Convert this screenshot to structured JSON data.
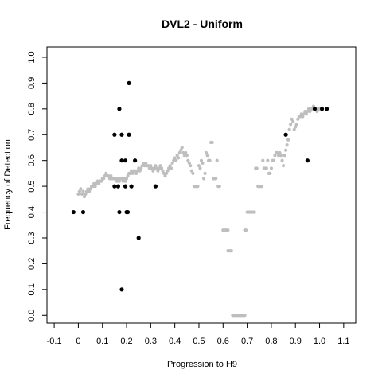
{
  "chart_data": {
    "type": "scatter",
    "title": "DVL2 - Uniform",
    "xlabel": "Progression to H9",
    "ylabel": "Frequency of Detection",
    "xlim": [
      -0.13,
      1.15
    ],
    "ylim": [
      -0.03,
      1.04
    ],
    "x_ticks": [
      "-0.1",
      "0",
      "0.1",
      "0.2",
      "0.3",
      "0.4",
      "0.5",
      "0.6",
      "0.7",
      "0.8",
      "0.9",
      "1.0",
      "1.1"
    ],
    "x_tick_values": [
      -0.1,
      0,
      0.1,
      0.2,
      0.3,
      0.4,
      0.5,
      0.6,
      0.7,
      0.8,
      0.9,
      1.0,
      1.1
    ],
    "y_ticks": [
      "0.0",
      "0.1",
      "0.2",
      "0.3",
      "0.4",
      "0.5",
      "0.6",
      "0.7",
      "0.8",
      "0.9",
      "1.0"
    ],
    "y_tick_values": [
      0,
      0.1,
      0.2,
      0.3,
      0.4,
      0.5,
      0.6,
      0.7,
      0.8,
      0.9,
      1.0
    ],
    "grid": false,
    "legend": "none",
    "series": [
      {
        "color": "#bebebe",
        "points": [
          [
            0.0,
            0.47
          ],
          [
            0.005,
            0.48
          ],
          [
            0.01,
            0.49
          ],
          [
            0.015,
            0.47
          ],
          [
            0.02,
            0.48
          ],
          [
            0.025,
            0.46
          ],
          [
            0.03,
            0.47
          ],
          [
            0.035,
            0.48
          ],
          [
            0.04,
            0.49
          ],
          [
            0.045,
            0.48
          ],
          [
            0.05,
            0.49
          ],
          [
            0.055,
            0.5
          ],
          [
            0.06,
            0.5
          ],
          [
            0.065,
            0.51
          ],
          [
            0.07,
            0.5
          ],
          [
            0.075,
            0.51
          ],
          [
            0.08,
            0.52
          ],
          [
            0.085,
            0.51
          ],
          [
            0.09,
            0.52
          ],
          [
            0.095,
            0.52
          ],
          [
            0.1,
            0.53
          ],
          [
            0.105,
            0.53
          ],
          [
            0.11,
            0.54
          ],
          [
            0.115,
            0.55
          ],
          [
            0.12,
            0.54
          ],
          [
            0.125,
            0.54
          ],
          [
            0.13,
            0.53
          ],
          [
            0.135,
            0.54
          ],
          [
            0.14,
            0.53
          ],
          [
            0.145,
            0.53
          ],
          [
            0.15,
            0.53
          ],
          [
            0.155,
            0.53
          ],
          [
            0.16,
            0.52
          ],
          [
            0.165,
            0.53
          ],
          [
            0.17,
            0.52
          ],
          [
            0.175,
            0.53
          ],
          [
            0.18,
            0.53
          ],
          [
            0.185,
            0.52
          ],
          [
            0.19,
            0.53
          ],
          [
            0.195,
            0.52
          ],
          [
            0.2,
            0.53
          ],
          [
            0.205,
            0.54
          ],
          [
            0.21,
            0.55
          ],
          [
            0.215,
            0.55
          ],
          [
            0.22,
            0.56
          ],
          [
            0.225,
            0.55
          ],
          [
            0.23,
            0.56
          ],
          [
            0.235,
            0.56
          ],
          [
            0.24,
            0.55
          ],
          [
            0.245,
            0.56
          ],
          [
            0.25,
            0.57
          ],
          [
            0.255,
            0.56
          ],
          [
            0.26,
            0.57
          ],
          [
            0.265,
            0.58
          ],
          [
            0.27,
            0.59
          ],
          [
            0.275,
            0.58
          ],
          [
            0.28,
            0.59
          ],
          [
            0.285,
            0.58
          ],
          [
            0.29,
            0.58
          ],
          [
            0.295,
            0.57
          ],
          [
            0.3,
            0.58
          ],
          [
            0.305,
            0.57
          ],
          [
            0.31,
            0.56
          ],
          [
            0.315,
            0.57
          ],
          [
            0.32,
            0.58
          ],
          [
            0.325,
            0.57
          ],
          [
            0.33,
            0.56
          ],
          [
            0.335,
            0.57
          ],
          [
            0.34,
            0.58
          ],
          [
            0.345,
            0.57
          ],
          [
            0.35,
            0.56
          ],
          [
            0.355,
            0.55
          ],
          [
            0.36,
            0.54
          ],
          [
            0.365,
            0.55
          ],
          [
            0.37,
            0.56
          ],
          [
            0.375,
            0.57
          ],
          [
            0.38,
            0.58
          ],
          [
            0.385,
            0.57
          ],
          [
            0.39,
            0.59
          ],
          [
            0.395,
            0.6
          ],
          [
            0.4,
            0.61
          ],
          [
            0.405,
            0.6
          ],
          [
            0.41,
            0.62
          ],
          [
            0.415,
            0.61
          ],
          [
            0.42,
            0.63
          ],
          [
            0.425,
            0.64
          ],
          [
            0.43,
            0.65
          ],
          [
            0.435,
            0.63
          ],
          [
            0.44,
            0.62
          ],
          [
            0.445,
            0.63
          ],
          [
            0.45,
            0.62
          ],
          [
            0.455,
            0.6
          ],
          [
            0.46,
            0.59
          ],
          [
            0.465,
            0.58
          ],
          [
            0.47,
            0.56
          ],
          [
            0.475,
            0.55
          ],
          [
            0.48,
            0.5
          ],
          [
            0.485,
            0.5
          ],
          [
            0.49,
            0.5
          ],
          [
            0.495,
            0.5
          ],
          [
            0.5,
            0.58
          ],
          [
            0.505,
            0.57
          ],
          [
            0.51,
            0.6
          ],
          [
            0.515,
            0.59
          ],
          [
            0.52,
            0.53
          ],
          [
            0.525,
            0.55
          ],
          [
            0.53,
            0.63
          ],
          [
            0.535,
            0.62
          ],
          [
            0.54,
            0.6
          ],
          [
            0.545,
            0.6
          ],
          [
            0.55,
            0.67
          ],
          [
            0.555,
            0.67
          ],
          [
            0.56,
            0.53
          ],
          [
            0.565,
            0.53
          ],
          [
            0.57,
            0.53
          ],
          [
            0.575,
            0.6
          ],
          [
            0.58,
            0.5
          ],
          [
            0.585,
            0.5
          ],
          [
            0.6,
            0.33
          ],
          [
            0.605,
            0.33
          ],
          [
            0.61,
            0.33
          ],
          [
            0.615,
            0.33
          ],
          [
            0.62,
            0.33
          ],
          [
            0.62,
            0.25
          ],
          [
            0.625,
            0.25
          ],
          [
            0.63,
            0.25
          ],
          [
            0.635,
            0.25
          ],
          [
            0.64,
            0.0
          ],
          [
            0.645,
            0.0
          ],
          [
            0.65,
            0.0
          ],
          [
            0.655,
            0.0
          ],
          [
            0.66,
            0.0
          ],
          [
            0.665,
            0.0
          ],
          [
            0.67,
            0.0
          ],
          [
            0.675,
            0.0
          ],
          [
            0.68,
            0.0
          ],
          [
            0.685,
            0.0
          ],
          [
            0.69,
            0.0
          ],
          [
            0.69,
            0.33
          ],
          [
            0.695,
            0.33
          ],
          [
            0.7,
            0.4
          ],
          [
            0.705,
            0.4
          ],
          [
            0.71,
            0.4
          ],
          [
            0.715,
            0.4
          ],
          [
            0.72,
            0.4
          ],
          [
            0.725,
            0.4
          ],
          [
            0.73,
            0.4
          ],
          [
            0.735,
            0.57
          ],
          [
            0.74,
            0.57
          ],
          [
            0.745,
            0.5
          ],
          [
            0.75,
            0.5
          ],
          [
            0.755,
            0.5
          ],
          [
            0.76,
            0.5
          ],
          [
            0.765,
            0.6
          ],
          [
            0.77,
            0.57
          ],
          [
            0.775,
            0.57
          ],
          [
            0.78,
            0.57
          ],
          [
            0.785,
            0.6
          ],
          [
            0.79,
            0.55
          ],
          [
            0.795,
            0.55
          ],
          [
            0.8,
            0.57
          ],
          [
            0.805,
            0.6
          ],
          [
            0.81,
            0.6
          ],
          [
            0.815,
            0.62
          ],
          [
            0.82,
            0.63
          ],
          [
            0.825,
            0.63
          ],
          [
            0.83,
            0.62
          ],
          [
            0.835,
            0.63
          ],
          [
            0.84,
            0.62
          ],
          [
            0.845,
            0.6
          ],
          [
            0.85,
            0.58
          ],
          [
            0.855,
            0.62
          ],
          [
            0.86,
            0.64
          ],
          [
            0.865,
            0.66
          ],
          [
            0.87,
            0.68
          ],
          [
            0.875,
            0.72
          ],
          [
            0.88,
            0.74
          ],
          [
            0.885,
            0.76
          ],
          [
            0.89,
            0.75
          ],
          [
            0.895,
            0.72
          ],
          [
            0.9,
            0.73
          ],
          [
            0.905,
            0.74
          ],
          [
            0.91,
            0.76
          ],
          [
            0.915,
            0.77
          ],
          [
            0.92,
            0.77
          ],
          [
            0.925,
            0.78
          ],
          [
            0.93,
            0.77
          ],
          [
            0.935,
            0.78
          ],
          [
            0.94,
            0.79
          ],
          [
            0.945,
            0.78
          ],
          [
            0.95,
            0.79
          ],
          [
            0.955,
            0.8
          ],
          [
            0.96,
            0.79
          ],
          [
            0.965,
            0.8
          ],
          [
            0.97,
            0.8
          ],
          [
            0.975,
            0.81
          ],
          [
            0.98,
            0.8
          ],
          [
            0.985,
            0.8
          ],
          [
            0.99,
            0.79
          ],
          [
            0.995,
            0.8
          ],
          [
            1.0,
            0.8
          ]
        ]
      },
      {
        "color": "#000000",
        "points": [
          [
            -0.02,
            0.4
          ],
          [
            0.02,
            0.4
          ],
          [
            0.15,
            0.7
          ],
          [
            0.15,
            0.5
          ],
          [
            0.165,
            0.5
          ],
          [
            0.17,
            0.4
          ],
          [
            0.17,
            0.8
          ],
          [
            0.18,
            0.6
          ],
          [
            0.18,
            0.7
          ],
          [
            0.18,
            0.1
          ],
          [
            0.195,
            0.6
          ],
          [
            0.195,
            0.5
          ],
          [
            0.2,
            0.4
          ],
          [
            0.205,
            0.4
          ],
          [
            0.21,
            0.9
          ],
          [
            0.21,
            0.7
          ],
          [
            0.22,
            0.5
          ],
          [
            0.235,
            0.6
          ],
          [
            0.25,
            0.3
          ],
          [
            0.32,
            0.5
          ],
          [
            0.86,
            0.7
          ],
          [
            0.95,
            0.6
          ],
          [
            0.98,
            0.8
          ],
          [
            1.01,
            0.8
          ],
          [
            1.03,
            0.8
          ]
        ]
      }
    ]
  }
}
